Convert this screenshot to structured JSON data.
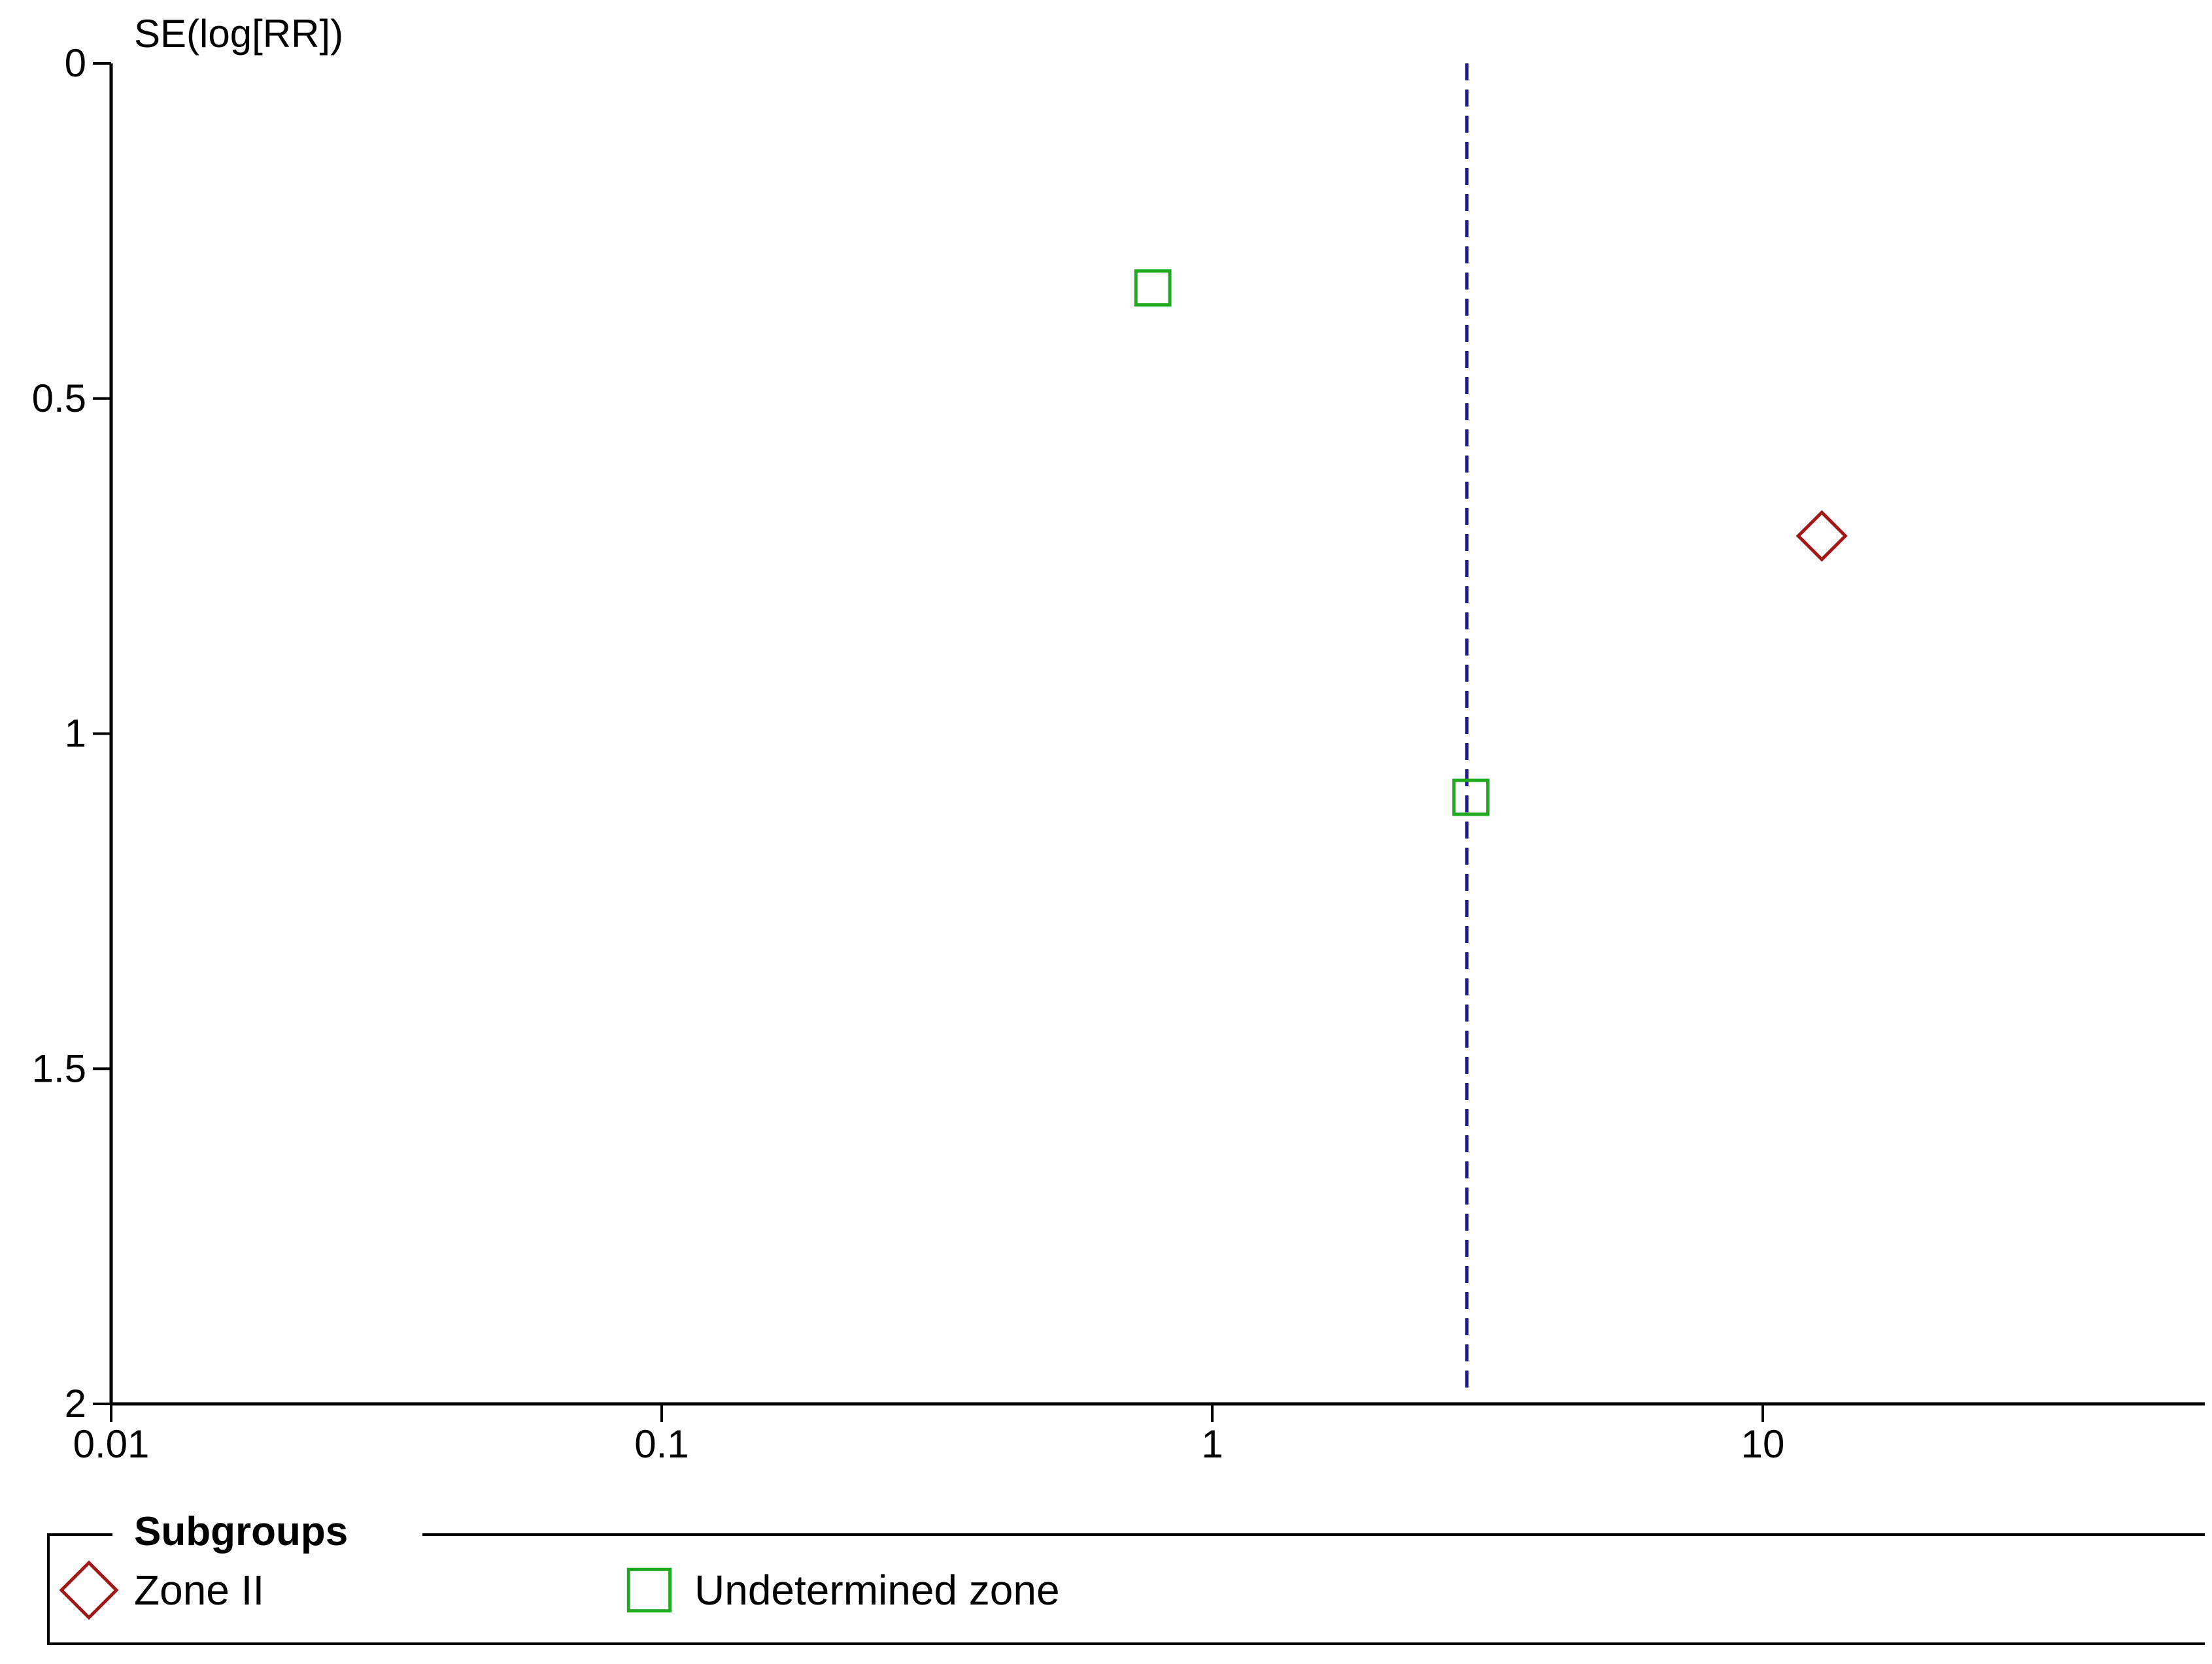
{
  "chart_data": {
    "type": "scatter",
    "plot_kind": "funnel plot",
    "ylabel": "SE(log[RR])",
    "xlabel": "",
    "x_scale": "log",
    "xlim": [
      0.01,
      100
    ],
    "ylim": [
      0,
      2
    ],
    "y_inverted": true,
    "x_ticks": [
      0.01,
      0.1,
      1,
      10
    ],
    "x_tick_labels": [
      "0.01",
      "0.1",
      "1",
      "10"
    ],
    "y_ticks": [
      0,
      0.5,
      1,
      1.5,
      2
    ],
    "y_tick_labels": [
      "0",
      "0.5",
      "1",
      "1.5",
      "2"
    ],
    "reference_line": {
      "x": 2.9,
      "y_range": [
        0,
        2
      ],
      "style": "dashed",
      "color": "#1a1aa6"
    },
    "grid": false,
    "legend": {
      "title": "Subgroups",
      "position": "bottom",
      "entries": [
        {
          "label": "Zone II",
          "marker": "diamond",
          "color": "#a01818"
        },
        {
          "label": "Undetermined zone",
          "marker": "square",
          "color": "#1faa1f"
        }
      ]
    },
    "series": [
      {
        "name": "Zone II",
        "marker": "diamond",
        "color": "#a01818",
        "points": [
          {
            "x": 12.8,
            "y": 0.705
          }
        ]
      },
      {
        "name": "Undetermined zone",
        "marker": "square",
        "color": "#1faa1f",
        "points": [
          {
            "x": 0.78,
            "y": 0.335
          },
          {
            "x": 2.95,
            "y": 1.095
          }
        ]
      }
    ]
  }
}
